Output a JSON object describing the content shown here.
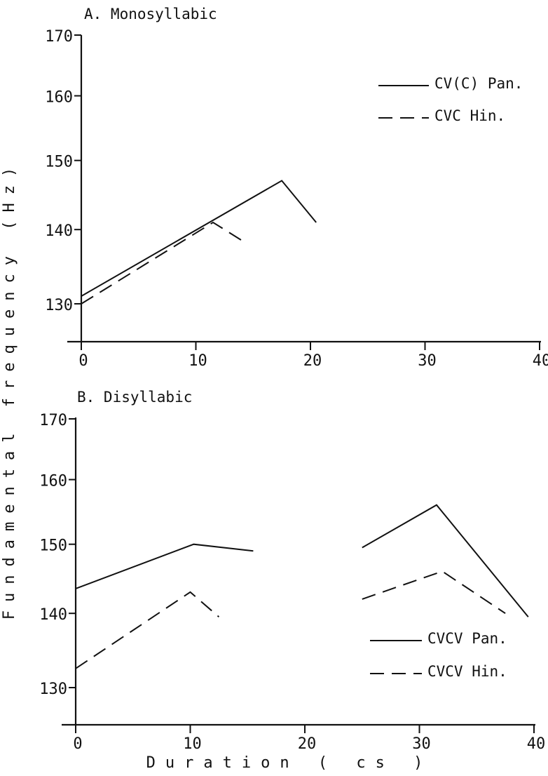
{
  "ylabel": "Fundamental frequency (Hz)",
  "xlabel": "Duration ( cs )",
  "chart_data": [
    {
      "type": "line",
      "title": "A. Monosyllabic",
      "xlim": [
        0,
        40
      ],
      "ylim": [
        126,
        170
      ],
      "y_scale": "log",
      "x_ticks": [
        "0",
        "10",
        "20",
        "30",
        "40"
      ],
      "y_ticks": [
        "130",
        "140",
        "150",
        "160",
        "170"
      ],
      "grid": false,
      "legend_position": "top-right",
      "series": [
        {
          "name": "CV(C) Pan.",
          "style": "solid",
          "segments": [
            [
              [
                0,
                131
              ],
              [
                17.5,
                147
              ],
              [
                20.5,
                141
              ]
            ]
          ]
        },
        {
          "name": "CVC Hin.",
          "style": "dashed",
          "segments": [
            [
              [
                0,
                130
              ],
              [
                11.5,
                141
              ],
              [
                14.5,
                138
              ]
            ]
          ]
        }
      ]
    },
    {
      "type": "line",
      "title": "B. Disyllabic",
      "xlim": [
        0,
        40
      ],
      "ylim": [
        126,
        170
      ],
      "y_scale": "log",
      "x_ticks": [
        "0",
        "10",
        "20",
        "30",
        "40"
      ],
      "y_ticks": [
        "130",
        "140",
        "150",
        "160",
        "170"
      ],
      "grid": false,
      "legend_position": "bottom-right",
      "series": [
        {
          "name": "CVCV Pan.",
          "style": "solid",
          "segments": [
            [
              [
                0,
                143.5
              ],
              [
                10.3,
                150
              ],
              [
                15.5,
                149
              ]
            ],
            [
              [
                25,
                149.5
              ],
              [
                31.5,
                156
              ],
              [
                39.5,
                139.5
              ]
            ]
          ]
        },
        {
          "name": "CVCV Hin.",
          "style": "dashed",
          "segments": [
            [
              [
                0,
                132.5
              ],
              [
                10,
                143
              ],
              [
                12.5,
                139.5
              ]
            ],
            [
              [
                25,
                142
              ],
              [
                32,
                146
              ],
              [
                37.5,
                140
              ]
            ]
          ]
        }
      ]
    }
  ]
}
